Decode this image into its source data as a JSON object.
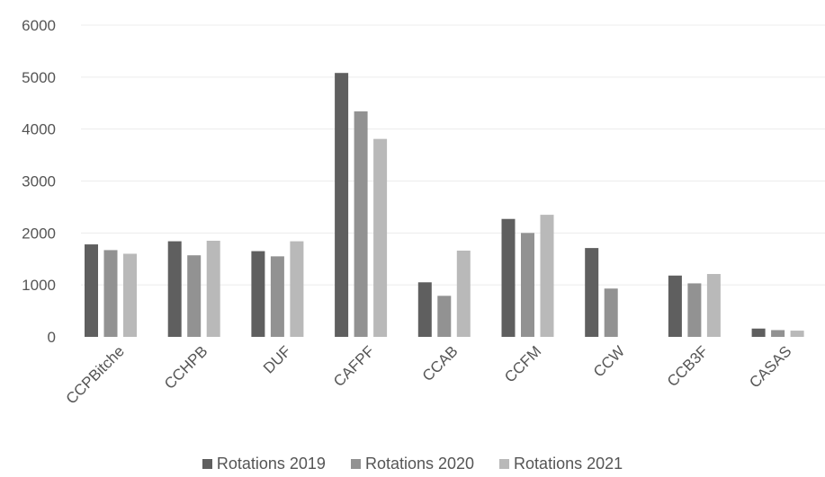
{
  "chart_data": {
    "type": "bar",
    "title": "",
    "xlabel": "",
    "ylabel": "",
    "ylim": [
      0,
      6000
    ],
    "yticks": [
      0,
      1000,
      2000,
      3000,
      4000,
      5000,
      6000
    ],
    "grid": true,
    "legend_position": "bottom",
    "categories": [
      "CCPBitche",
      "CCHPB",
      "DUF",
      "CAFPF",
      "CCAB",
      "CCFM",
      "CCW",
      "CCB3F",
      "CASAS"
    ],
    "series": [
      {
        "name": "Rotations 2019",
        "color": "#5f5f5f",
        "values": [
          1780,
          1840,
          1650,
          5080,
          1050,
          2270,
          1710,
          1180,
          160
        ]
      },
      {
        "name": "Rotations 2020",
        "color": "#929292",
        "values": [
          1670,
          1570,
          1550,
          4340,
          790,
          2000,
          930,
          1030,
          130
        ]
      },
      {
        "name": "Rotations 2021",
        "color": "#b9b9b9",
        "values": [
          1600,
          1850,
          1840,
          3810,
          1660,
          2350,
          null,
          1210,
          120
        ]
      }
    ]
  }
}
